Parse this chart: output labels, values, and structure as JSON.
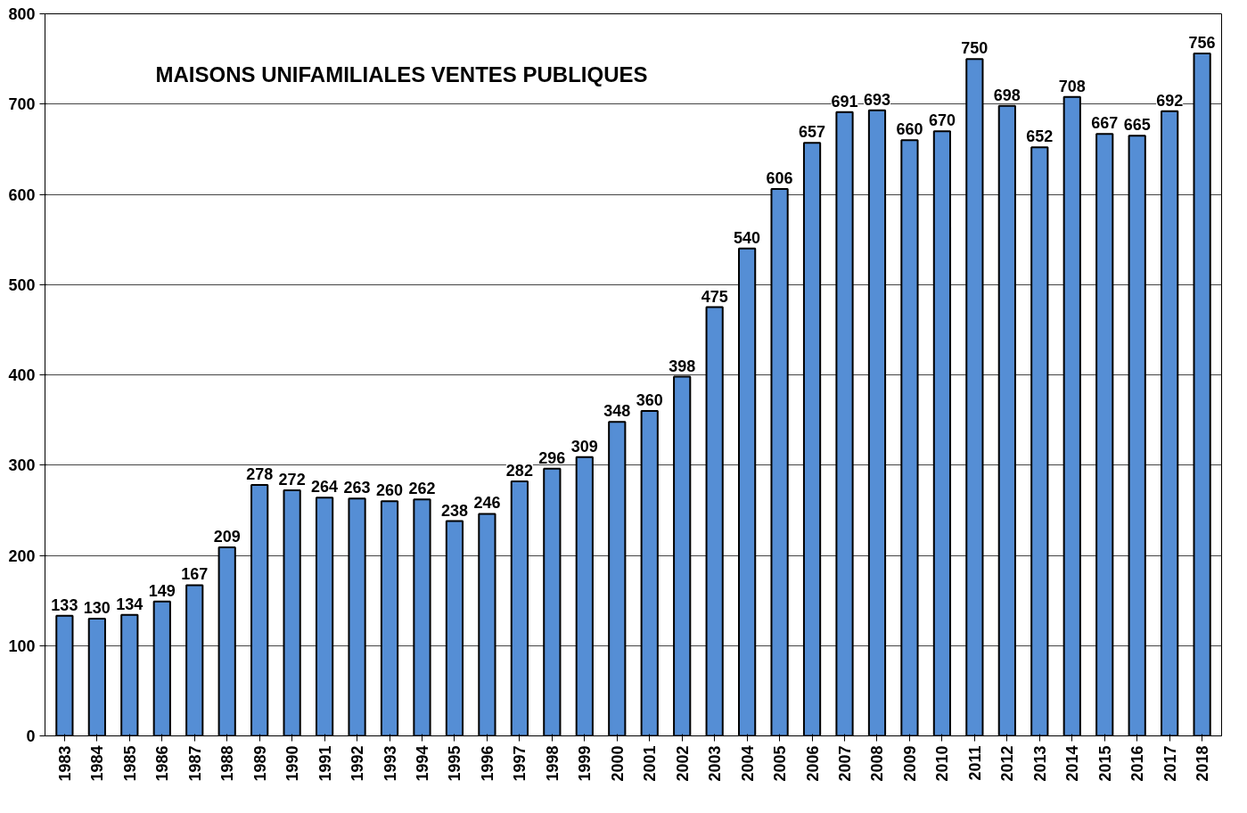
{
  "chart_data": {
    "type": "bar",
    "title": "MAISONS UNIFAMILIALES VENTES PUBLIQUES",
    "categories": [
      "1983",
      "1984",
      "1985",
      "1986",
      "1987",
      "1988",
      "1989",
      "1990",
      "1991",
      "1992",
      "1993",
      "1994",
      "1995",
      "1996",
      "1997",
      "1998",
      "1999",
      "2000",
      "2001",
      "2002",
      "2003",
      "2004",
      "2005",
      "2006",
      "2007",
      "2008",
      "2009",
      "2010",
      "2011",
      "2012",
      "2013",
      "2014",
      "2015",
      "2016",
      "2017",
      "2018"
    ],
    "values": [
      133,
      130,
      134,
      149,
      167,
      209,
      278,
      272,
      264,
      263,
      260,
      262,
      238,
      246,
      282,
      296,
      309,
      348,
      360,
      398,
      475,
      540,
      606,
      657,
      691,
      693,
      660,
      670,
      750,
      698,
      652,
      708,
      667,
      665,
      692,
      756
    ],
    "color": "#558ed5",
    "ylim": [
      0,
      800
    ],
    "yticks": [
      0,
      100,
      200,
      300,
      400,
      500,
      600,
      700,
      800
    ],
    "grid": "y",
    "data_labels": true
  }
}
